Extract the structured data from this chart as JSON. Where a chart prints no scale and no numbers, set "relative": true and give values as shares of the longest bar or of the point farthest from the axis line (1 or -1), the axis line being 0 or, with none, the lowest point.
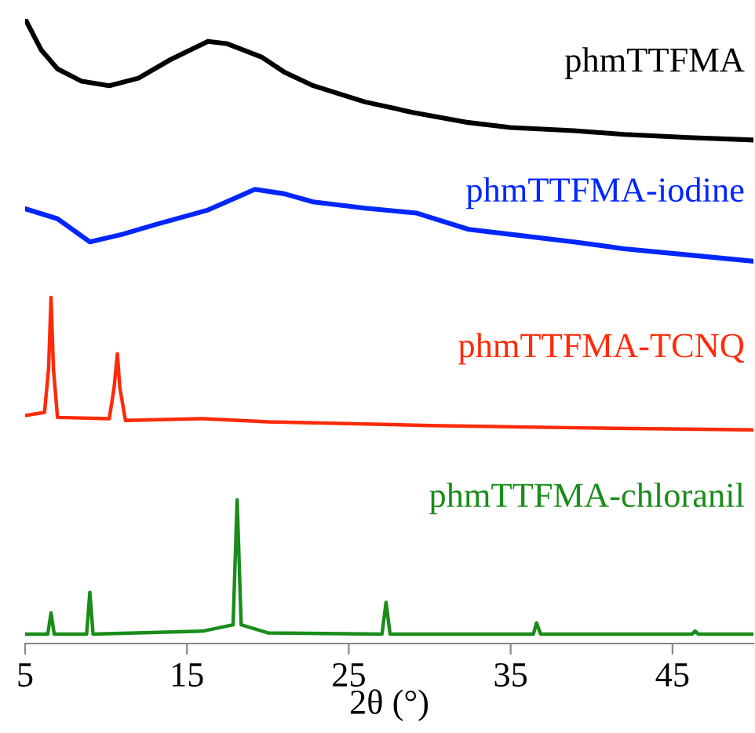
{
  "chart_data": {
    "type": "line",
    "relative": true,
    "xlabel": "2θ (°)",
    "xlim": [
      5,
      50
    ],
    "xticks": [
      5,
      15,
      25,
      35,
      45
    ],
    "tick_labels": "x",
    "grid": false,
    "legend": false,
    "series": [
      {
        "name": "phmTTFMA",
        "color": "#000000",
        "x": [
          5,
          6,
          7,
          8.5,
          10.2,
          12,
          14,
          16.3,
          17.5,
          19.6,
          21,
          22.8,
          26,
          29,
          32.4,
          35,
          38.9,
          42,
          46,
          50
        ],
        "values": [
          1.0,
          0.95,
          0.92,
          0.9,
          0.893,
          0.905,
          0.935,
          0.964,
          0.96,
          0.939,
          0.915,
          0.893,
          0.867,
          0.85,
          0.834,
          0.826,
          0.821,
          0.815,
          0.81,
          0.806
        ]
      },
      {
        "name": "phmTTFMA-iodine",
        "color": "#0026ff",
        "x": [
          5,
          7,
          9,
          11,
          13.1,
          16.3,
          19.2,
          21,
          22.8,
          26,
          29.2,
          32.4,
          35,
          38.9,
          42,
          46,
          50
        ],
        "values": [
          0.696,
          0.68,
          0.643,
          0.655,
          0.671,
          0.694,
          0.727,
          0.72,
          0.707,
          0.697,
          0.689,
          0.663,
          0.655,
          0.643,
          0.632,
          0.622,
          0.612
        ]
      },
      {
        "name": "phmTTFMA-TCNQ",
        "color": "#ff2a0a",
        "x": [
          5,
          6.2,
          6.45,
          6.6,
          6.75,
          7.0,
          10.2,
          10.5,
          10.7,
          10.85,
          11.2,
          16,
          20,
          30,
          40,
          50
        ],
        "values": [
          0.365,
          0.37,
          0.44,
          0.554,
          0.44,
          0.362,
          0.36,
          0.41,
          0.464,
          0.41,
          0.357,
          0.36,
          0.355,
          0.349,
          0.345,
          0.342
        ]
      },
      {
        "name": "phmTTFMA-chloranil",
        "color": "#1a8c1a",
        "x": [
          5,
          6.4,
          6.6,
          6.8,
          8.8,
          9.0,
          9.2,
          16,
          17.85,
          18.1,
          18.35,
          20,
          27.05,
          27.3,
          27.55,
          36.4,
          36.6,
          36.85,
          46.2,
          46.4,
          46.6,
          50
        ],
        "values": [
          0.015,
          0.015,
          0.049,
          0.015,
          0.015,
          0.082,
          0.015,
          0.02,
          0.03,
          0.23,
          0.03,
          0.017,
          0.015,
          0.066,
          0.015,
          0.015,
          0.033,
          0.015,
          0.015,
          0.02,
          0.015,
          0.015
        ]
      }
    ]
  }
}
